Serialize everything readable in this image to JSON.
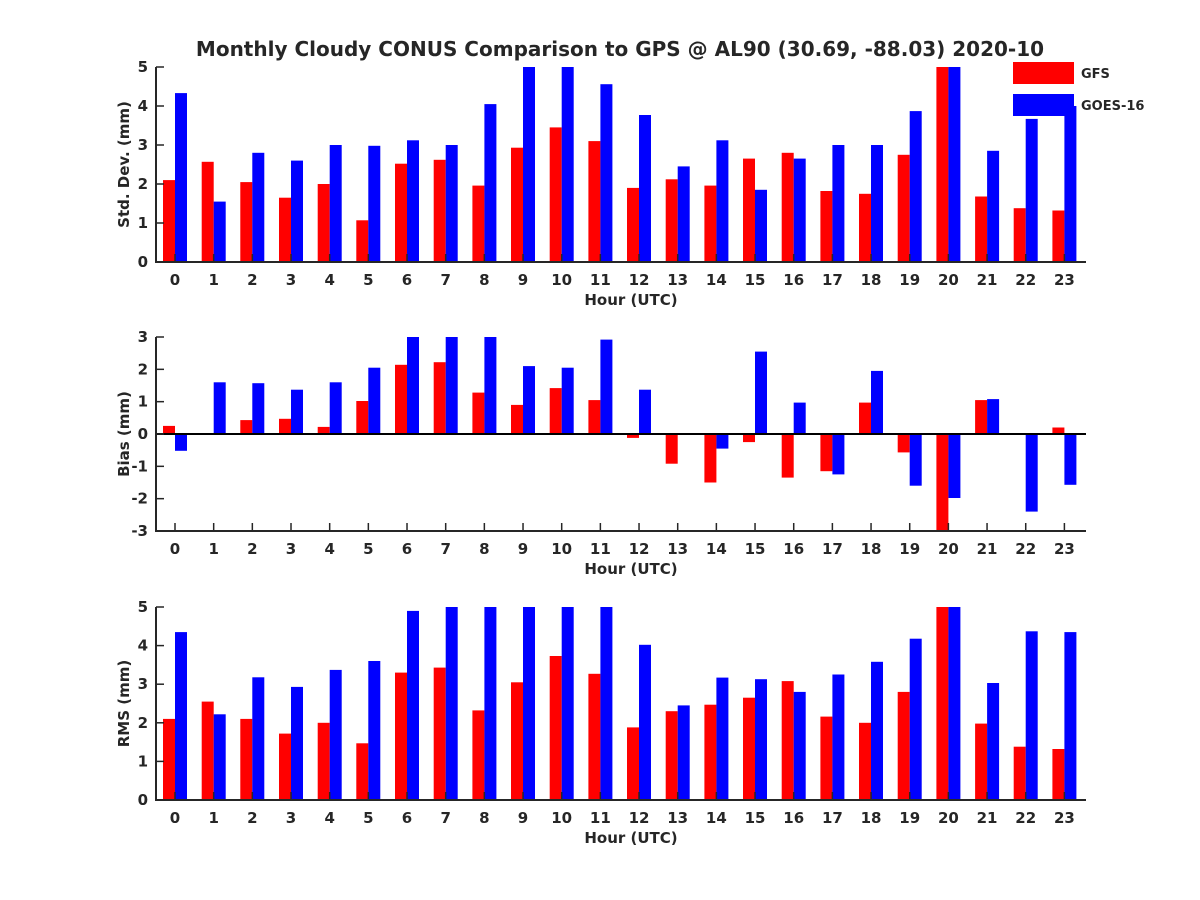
{
  "figure": {
    "title": "Monthly Cloudy CONUS Comparison to GPS @ AL90 (30.69, -88.03) 2020-10"
  },
  "legend": {
    "placement": "top-right",
    "entries": [
      {
        "name": "GFS",
        "color": "#ff0000"
      },
      {
        "name": "GOES-16",
        "color": "#0000ff"
      }
    ]
  },
  "chart_data": [
    {
      "type": "bar",
      "title": "Monthly Cloudy CONUS Comparison to GPS @ AL90 (30.69, -88.03) 2020-10",
      "xlabel": "Hour (UTC)",
      "ylabel": "Std. Dev. (mm)",
      "ylim": [
        0,
        5
      ],
      "yticks": [
        0,
        1,
        2,
        3,
        4,
        5
      ],
      "categories": [
        "0",
        "1",
        "2",
        "3",
        "4",
        "5",
        "6",
        "7",
        "8",
        "9",
        "10",
        "11",
        "12",
        "13",
        "14",
        "15",
        "16",
        "17",
        "18",
        "19",
        "20",
        "21",
        "22",
        "23"
      ],
      "grid": false,
      "series": [
        {
          "name": "GFS",
          "color": "#ff0000",
          "values": [
            2.1,
            2.57,
            2.05,
            1.65,
            2.0,
            1.07,
            2.52,
            2.62,
            1.96,
            2.93,
            3.45,
            3.1,
            1.9,
            2.12,
            1.96,
            2.65,
            2.8,
            1.82,
            1.75,
            2.75,
            5.0,
            1.68,
            1.38,
            1.32
          ]
        },
        {
          "name": "GOES-16",
          "color": "#0000ff",
          "values": [
            4.33,
            1.55,
            2.8,
            2.6,
            3.0,
            2.98,
            3.12,
            3.0,
            4.05,
            5.0,
            5.0,
            4.56,
            3.77,
            2.45,
            3.12,
            1.85,
            2.65,
            3.0,
            3.0,
            3.87,
            5.0,
            2.85,
            3.67,
            4.0
          ]
        }
      ]
    },
    {
      "type": "bar",
      "xlabel": "Hour (UTC)",
      "ylabel": "Bias (mm)",
      "ylim": [
        -3,
        3
      ],
      "yticks": [
        -3,
        -2,
        -1,
        0,
        1,
        2,
        3
      ],
      "categories": [
        "0",
        "1",
        "2",
        "3",
        "4",
        "5",
        "6",
        "7",
        "8",
        "9",
        "10",
        "11",
        "12",
        "13",
        "14",
        "15",
        "16",
        "17",
        "18",
        "19",
        "20",
        "21",
        "22",
        "23"
      ],
      "grid": false,
      "series": [
        {
          "name": "GFS",
          "color": "#ff0000",
          "values": [
            0.25,
            0.02,
            0.43,
            0.47,
            0.22,
            1.02,
            2.14,
            2.22,
            1.28,
            0.9,
            1.42,
            1.05,
            -0.12,
            -0.92,
            -1.5,
            -0.25,
            -1.35,
            -1.15,
            0.97,
            -0.57,
            -3.0,
            1.05,
            0.0,
            0.2
          ]
        },
        {
          "name": "GOES-16",
          "color": "#0000ff",
          "values": [
            -0.52,
            1.6,
            1.57,
            1.37,
            1.6,
            2.05,
            3.0,
            3.0,
            3.0,
            2.1,
            2.05,
            2.92,
            1.37,
            0.0,
            -0.45,
            2.55,
            0.97,
            -1.25,
            1.95,
            -1.6,
            -1.98,
            1.08,
            -2.4,
            -1.57
          ]
        }
      ]
    },
    {
      "type": "bar",
      "xlabel": "Hour (UTC)",
      "ylabel": "RMS (mm)",
      "ylim": [
        0,
        5
      ],
      "yticks": [
        0,
        1,
        2,
        3,
        4,
        5
      ],
      "categories": [
        "0",
        "1",
        "2",
        "3",
        "4",
        "5",
        "6",
        "7",
        "8",
        "9",
        "10",
        "11",
        "12",
        "13",
        "14",
        "15",
        "16",
        "17",
        "18",
        "19",
        "20",
        "21",
        "22",
        "23"
      ],
      "grid": false,
      "series": [
        {
          "name": "GFS",
          "color": "#ff0000",
          "values": [
            2.1,
            2.55,
            2.1,
            1.72,
            2.0,
            1.47,
            3.3,
            3.43,
            2.32,
            3.05,
            3.73,
            3.27,
            1.88,
            2.3,
            2.47,
            2.65,
            3.08,
            2.16,
            2.0,
            2.8,
            5.0,
            1.98,
            1.38,
            1.32
          ]
        },
        {
          "name": "GOES-16",
          "color": "#0000ff",
          "values": [
            4.35,
            2.22,
            3.18,
            2.93,
            3.37,
            3.6,
            4.9,
            5.0,
            5.0,
            5.0,
            5.0,
            5.0,
            4.02,
            2.45,
            3.17,
            3.13,
            2.8,
            3.25,
            3.58,
            4.18,
            5.0,
            3.03,
            4.37,
            4.35
          ]
        }
      ]
    }
  ]
}
